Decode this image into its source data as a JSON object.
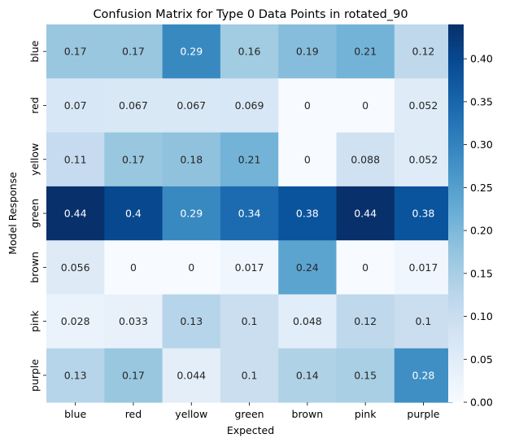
{
  "chart_data": {
    "type": "heatmap",
    "title": "Confusion Matrix for Type 0 Data Points in rotated_90",
    "xlabel": "Expected",
    "ylabel": "Model Response",
    "x_categories": [
      "blue",
      "red",
      "yellow",
      "green",
      "brown",
      "pink",
      "purple"
    ],
    "y_categories": [
      "blue",
      "red",
      "yellow",
      "green",
      "brown",
      "pink",
      "purple"
    ],
    "values": [
      [
        0.17,
        0.17,
        0.29,
        0.16,
        0.19,
        0.21,
        0.12
      ],
      [
        0.07,
        0.067,
        0.067,
        0.069,
        0,
        0,
        0.052
      ],
      [
        0.11,
        0.17,
        0.18,
        0.21,
        0,
        0.088,
        0.052
      ],
      [
        0.44,
        0.4,
        0.29,
        0.34,
        0.38,
        0.44,
        0.38
      ],
      [
        0.056,
        0,
        0,
        0.017,
        0.24,
        0,
        0.017
      ],
      [
        0.028,
        0.033,
        0.13,
        0.1,
        0.048,
        0.12,
        0.1
      ],
      [
        0.13,
        0.17,
        0.044,
        0.1,
        0.14,
        0.15,
        0.28
      ]
    ],
    "labels": [
      [
        "0.17",
        "0.17",
        "0.29",
        "0.16",
        "0.19",
        "0.21",
        "0.12"
      ],
      [
        "0.07",
        "0.067",
        "0.067",
        "0.069",
        "0",
        "0",
        "0.052"
      ],
      [
        "0.11",
        "0.17",
        "0.18",
        "0.21",
        "0",
        "0.088",
        "0.052"
      ],
      [
        "0.44",
        "0.4",
        "0.29",
        "0.34",
        "0.38",
        "0.44",
        "0.38"
      ],
      [
        "0.056",
        "0",
        "0",
        "0.017",
        "0.24",
        "0",
        "0.017"
      ],
      [
        "0.028",
        "0.033",
        "0.13",
        "0.1",
        "0.048",
        "0.12",
        "0.1"
      ],
      [
        "0.13",
        "0.17",
        "0.044",
        "0.1",
        "0.14",
        "0.15",
        "0.28"
      ]
    ],
    "colorscale": "Blues",
    "vmin": 0,
    "vmax": 0.44,
    "colorbar_ticks": [
      "0.00",
      "0.05",
      "0.10",
      "0.15",
      "0.20",
      "0.25",
      "0.30",
      "0.35",
      "0.40"
    ],
    "grid": false
  }
}
